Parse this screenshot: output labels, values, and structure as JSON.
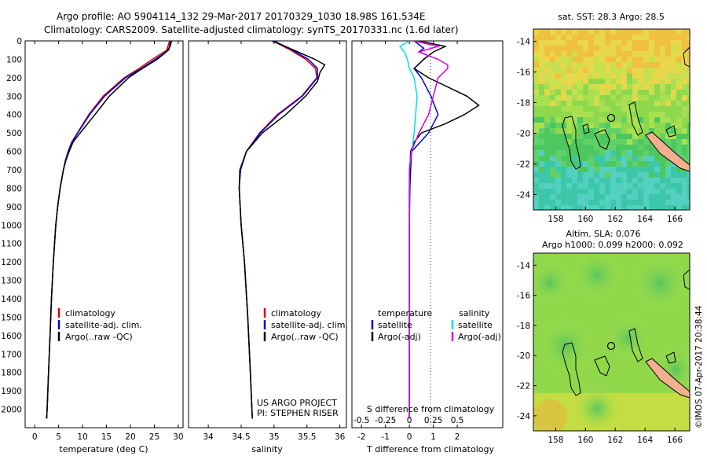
{
  "title": {
    "line1": "Argo profile: AO 5904114_132 29-Mar-2017 20170329_1030 18.98S 161.534E",
    "line2": "Climatology: CARS2009. Satellite-adjusted climatology: synTS_20170331.nc (1.6d later)"
  },
  "colors": {
    "climatology": "#e00000",
    "satellite": "#0000e0",
    "argo": "#000000",
    "sat_sal": "#00e0e0",
    "argo_sal": "#e000e0"
  },
  "credit": {
    "line1": "US ARGO PROJECT",
    "line2": "PI: STEPHEN RISER"
  },
  "watermark": "©IMOS 07-Apr-2017 20:38:44",
  "chart_data": [
    {
      "type": "line",
      "id": "temperature",
      "xlabel": "temperature (deg C)",
      "ylim": [
        2100,
        0
      ],
      "xlim": [
        -2,
        31
      ],
      "xticks": [
        "0",
        "5",
        "10",
        "15",
        "20",
        "25",
        "30"
      ],
      "yticks": [
        "0",
        "100",
        "200",
        "300",
        "400",
        "500",
        "600",
        "700",
        "800",
        "900",
        "1000",
        "1100",
        "1200",
        "1300",
        "1400",
        "1500",
        "1600",
        "1700",
        "1800",
        "1900",
        "2000"
      ],
      "legend": [
        "climatology",
        "satellite-adj. clim.",
        "Argo(..raw -QC)"
      ],
      "series": [
        {
          "name": "climatology",
          "color": "#e00000",
          "depth": [
            0,
            50,
            100,
            150,
            200,
            300,
            400,
            500,
            550,
            600,
            650,
            700,
            800,
            900,
            1000,
            1200,
            1400,
            1600,
            1800,
            2000,
            2050
          ],
          "values": [
            28.2,
            27.6,
            24.6,
            21.8,
            18.7,
            14.3,
            11.3,
            8.9,
            7.7,
            7.0,
            6.4,
            6.0,
            5.3,
            4.8,
            4.4,
            3.9,
            3.5,
            3.2,
            2.9,
            2.6,
            2.5
          ]
        },
        {
          "name": "satellite-adj. clim.",
          "color": "#0000e0",
          "depth": [
            0,
            50,
            100,
            150,
            200,
            300,
            400,
            500,
            550,
            600,
            650,
            700,
            800,
            900,
            1000,
            1200,
            1400,
            1600,
            1800,
            2000,
            2050
          ],
          "values": [
            28.4,
            28.0,
            25.2,
            22.3,
            19.0,
            14.6,
            11.5,
            9.0,
            7.8,
            7.0,
            6.4,
            6.0,
            5.3,
            4.8,
            4.4,
            3.9,
            3.5,
            3.2,
            2.9,
            2.6,
            2.5
          ]
        },
        {
          "name": "Argo(..raw -QC)",
          "color": "#000000",
          "depth": [
            0,
            30,
            60,
            100,
            150,
            200,
            300,
            400,
            500,
            550,
            600,
            650,
            700,
            800,
            900,
            1000,
            1200,
            1400,
            1600,
            1800,
            2000,
            2050
          ],
          "values": [
            28.6,
            28.3,
            27.5,
            25.6,
            22.5,
            19.6,
            15.6,
            12.6,
            9.5,
            8.0,
            7.2,
            6.5,
            6.0,
            5.3,
            4.8,
            4.4,
            3.9,
            3.5,
            3.2,
            2.9,
            2.6,
            2.5
          ]
        }
      ]
    },
    {
      "type": "line",
      "id": "salinity",
      "xlabel": "salinity",
      "ylim": [
        2100,
        0
      ],
      "xlim": [
        33.7,
        36.1
      ],
      "xticks": [
        "34",
        "34.5",
        "35",
        "35.5",
        "36"
      ],
      "legend": [
        "climatology",
        "satellite-adj. clim.",
        "Argo(..raw -QC)"
      ],
      "series": [
        {
          "name": "climatology",
          "color": "#e00000",
          "depth": [
            0,
            50,
            100,
            150,
            200,
            300,
            400,
            500,
            600,
            700,
            800,
            1000,
            1200,
            1500,
            1800,
            2050
          ],
          "values": [
            34.98,
            35.25,
            35.48,
            35.63,
            35.65,
            35.42,
            35.05,
            34.78,
            34.58,
            34.49,
            34.47,
            34.5,
            34.55,
            34.6,
            34.64,
            34.67
          ]
        },
        {
          "name": "satellite-adj. clim.",
          "color": "#0000e0",
          "depth": [
            0,
            50,
            100,
            150,
            200,
            300,
            400,
            500,
            600,
            700,
            800,
            1000,
            1200,
            1500,
            1800,
            2050
          ],
          "values": [
            35.0,
            35.28,
            35.52,
            35.66,
            35.66,
            35.43,
            35.07,
            34.79,
            34.58,
            34.49,
            34.47,
            34.5,
            34.55,
            34.6,
            34.64,
            34.67
          ]
        },
        {
          "name": "Argo(..raw -QC)",
          "color": "#000000",
          "depth": [
            0,
            50,
            100,
            130,
            170,
            220,
            300,
            400,
            500,
            600,
            700,
            800,
            1000,
            1200,
            1500,
            1800,
            2050
          ],
          "values": [
            34.97,
            35.3,
            35.62,
            35.77,
            35.7,
            35.66,
            35.48,
            35.18,
            34.82,
            34.58,
            34.48,
            34.47,
            34.5,
            34.55,
            34.6,
            34.64,
            34.67
          ]
        }
      ]
    },
    {
      "type": "line",
      "id": "difference",
      "xlabel": "T difference from climatology",
      "xlabel_top": "S difference from climatology",
      "ylim": [
        2100,
        0
      ],
      "xlim": [
        -2.4,
        3.9
      ],
      "xticks": [
        "-2",
        "-1",
        "0",
        "1",
        "2"
      ],
      "xticks_s": [
        "-0.5",
        "-0.25",
        "0",
        "0.25",
        "0.5"
      ],
      "legend": {
        "temperature": "temperature",
        "salinity": "salinity",
        "t_sat": "satellite",
        "t_argo": "Argo(-adj)",
        "s_sat": "satellite",
        "s_argo": "Argo(-adj)"
      },
      "series": [
        {
          "name": "T satellite",
          "color": "#0000e0",
          "depth": [
            0,
            40,
            60,
            80,
            100,
            150,
            200,
            300,
            400,
            500,
            600,
            700,
            800,
            1000,
            1500,
            2050
          ],
          "values": [
            0.2,
            0.6,
            0.4,
            0.8,
            0.6,
            0.2,
            0.5,
            0.9,
            1.2,
            0.8,
            0.1,
            0.05,
            0.02,
            0.0,
            0.0,
            0.0
          ]
        },
        {
          "name": "T Argo(-adj)",
          "color": "#000000",
          "depth": [
            0,
            30,
            60,
            100,
            150,
            200,
            300,
            350,
            400,
            450,
            500,
            550,
            600,
            700,
            800,
            1000,
            1500,
            2050
          ],
          "values": [
            0.4,
            1.5,
            1.0,
            0.6,
            0.2,
            0.8,
            2.4,
            2.9,
            2.3,
            1.5,
            0.5,
            0.2,
            0.05,
            0.02,
            0.0,
            0.0,
            0.0,
            0.0
          ]
        },
        {
          "name": "S satellite",
          "color": "#00e0e0",
          "depth": [
            0,
            30,
            60,
            100,
            150,
            200,
            300,
            500,
            700,
            800,
            1000,
            1200,
            1500,
            2050
          ],
          "values": [
            0.0,
            -0.1,
            -0.05,
            -0.02,
            0.0,
            0.05,
            0.08,
            0.05,
            0.0,
            0.0,
            0.0,
            0.0,
            0.0,
            0.0
          ]
        },
        {
          "name": "S Argo(-adj)",
          "color": "#e000e0",
          "depth": [
            0,
            30,
            60,
            100,
            130,
            150,
            200,
            300,
            400,
            500,
            600,
            700,
            800,
            1000,
            1200,
            1500,
            2050
          ],
          "values": [
            0.05,
            0.3,
            0.1,
            0.3,
            0.4,
            0.4,
            0.3,
            0.25,
            0.2,
            0.1,
            0.02,
            0.0,
            0.0,
            0.0,
            0.0,
            0.0,
            0.0
          ]
        }
      ]
    },
    {
      "type": "heatmap",
      "id": "sst-map",
      "title": "sat. SST: 28.3 Argo: 28.5",
      "xticks": [
        "158",
        "160",
        "162",
        "164",
        "166"
      ],
      "yticks": [
        "-14",
        "-16",
        "-18",
        "-20",
        "-22",
        "-24"
      ]
    },
    {
      "type": "heatmap",
      "id": "sla-map",
      "title_line1": "Altim. SLA: 0.076",
      "title_line2": "Argo h1000: 0.099 h2000: 0.092",
      "xticks": [
        "158",
        "160",
        "162",
        "164",
        "166"
      ],
      "yticks": [
        "-14",
        "-16",
        "-18",
        "-20",
        "-22",
        "-24"
      ]
    }
  ]
}
